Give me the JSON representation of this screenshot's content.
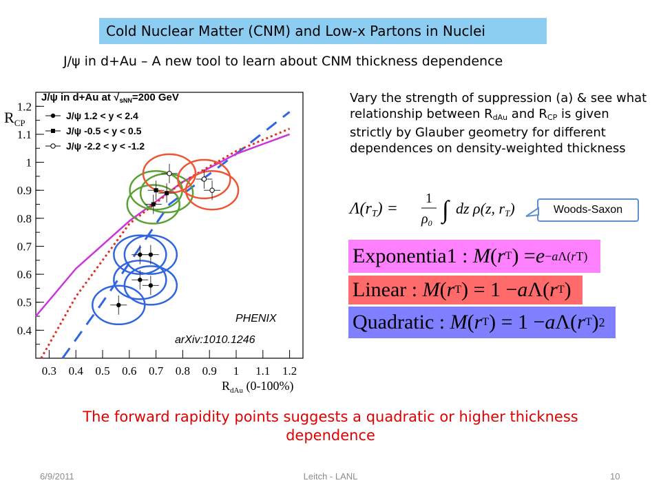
{
  "slide": {
    "title": "Cold Nuclear Matter (CNM) and Low-x Partons in Nuclei",
    "subtitle": "J/ψ in d+Au – A new tool to learn about CNM thickness dependence",
    "paragraph": {
      "p1": "Vary the strength of suppression (a) & see what relationship between R",
      "sub1": "dAu",
      "p2": " and R",
      "sub2": "CP",
      "p3": " is given strictly by Glauber geometry for different dependences on density-weighted thickness"
    },
    "woods_saxon": "Woods-Saxon",
    "formulas": {
      "exp_label": "Exponentia1 :",
      "lin_label": "Linear :",
      "quad_label": "Quadratic :"
    },
    "conclusion": "The forward rapidity points suggests a quadratic or higher thickness dependence",
    "footer": {
      "date": "6/9/2011",
      "center": "Leitch - LANL",
      "page": "10"
    }
  },
  "chart_data": {
    "type": "scatter",
    "title": "J/ψ in d+Au at √sNN=200 GeV",
    "xlabel": "RdAu (0-100%)",
    "ylabel": "RCP",
    "xlim": [
      0.25,
      1.25
    ],
    "ylim": [
      0.3,
      1.25
    ],
    "x_ticks": [
      "0.3",
      "0.4",
      "0.5",
      "0.6",
      "0.7",
      "0.8",
      "0.9",
      "1",
      "1.1",
      "1.2"
    ],
    "y_ticks": [
      "0.4",
      "0.5",
      "0.6",
      "0.7",
      "0.8",
      "0.9",
      "1",
      "1.1",
      "1.2"
    ],
    "annotation_1": "PHENIX",
    "annotation_2": "arXiv:1010.1246",
    "legend": [
      "J/ψ 1.2 < y < 2.4",
      "J/ψ -0.5 < y < 0.5",
      "J/ψ -2.2 < y < -1.2"
    ],
    "series": [
      {
        "name": "J/ψ 1.2 < y < 2.4",
        "marker": "dot",
        "circle": "#2f66e0",
        "points": [
          [
            0.56,
            0.49
          ],
          [
            0.64,
            0.67
          ],
          [
            0.68,
            0.67
          ],
          [
            0.64,
            0.58
          ],
          [
            0.68,
            0.56
          ]
        ]
      },
      {
        "name": "J/ψ -0.5 < y < 0.5",
        "marker": "square",
        "circle": "#5aa033",
        "points": [
          [
            0.69,
            0.85
          ],
          [
            0.7,
            0.9
          ],
          [
            0.74,
            0.89
          ]
        ]
      },
      {
        "name": "J/ψ -2.2 < y < -1.2",
        "marker": "open",
        "circle": "#ee5533",
        "points": [
          [
            0.75,
            0.96
          ],
          [
            0.88,
            0.94
          ],
          [
            0.91,
            0.9
          ]
        ]
      }
    ],
    "curves": [
      {
        "name": "",
        "style": "dashed",
        "color": "#2f66e0",
        "points": [
          [
            0.35,
            0.3
          ],
          [
            0.5,
            0.5
          ],
          [
            0.75,
            0.85
          ],
          [
            1.0,
            1.03
          ],
          [
            1.2,
            1.18
          ]
        ]
      },
      {
        "name": "",
        "style": "solid",
        "color": "#cc33dd",
        "points": [
          [
            0.25,
            0.45
          ],
          [
            0.4,
            0.62
          ],
          [
            0.6,
            0.79
          ],
          [
            0.8,
            0.93
          ],
          [
            1.0,
            1.03
          ],
          [
            1.2,
            1.1
          ]
        ]
      },
      {
        "name": "",
        "style": "dotted",
        "color": "#dd3322",
        "points": [
          [
            0.27,
            0.3
          ],
          [
            0.4,
            0.52
          ],
          [
            0.6,
            0.78
          ],
          [
            0.8,
            0.93
          ],
          [
            1.0,
            1.04
          ],
          [
            1.2,
            1.12
          ]
        ]
      }
    ]
  }
}
